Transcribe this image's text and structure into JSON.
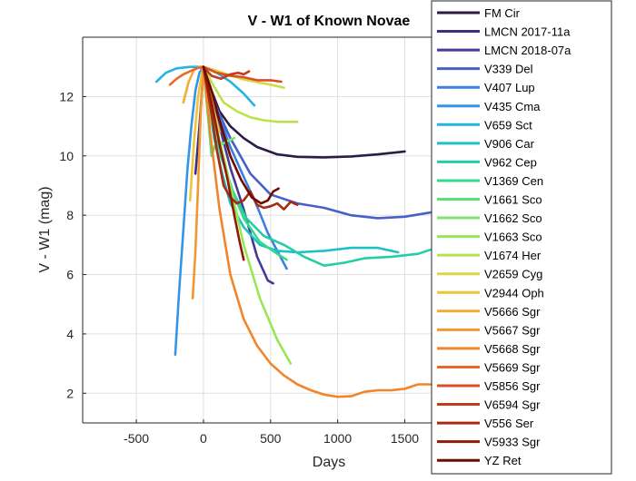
{
  "chart_data": {
    "type": "line",
    "title": "V - W1 of Known Novae",
    "xlabel": "Days",
    "ylabel": "V - W1 (mag)",
    "xlim": [
      -900,
      1700
    ],
    "ylim": [
      1,
      14
    ],
    "xticks": [
      -500,
      0,
      500,
      1000,
      1500
    ],
    "xtick_labels": [
      "-500",
      "0",
      "500",
      "1000",
      "1500"
    ],
    "yticks": [
      2,
      4,
      6,
      8,
      10,
      12
    ],
    "ytick_labels": [
      "2",
      "4",
      "6",
      "8",
      "10",
      "12"
    ],
    "grid": true,
    "legend_position": "right",
    "series": [
      {
        "name": "FM Cir",
        "color": "#2b1b45",
        "x": [
          0,
          60,
          120,
          200,
          300,
          400,
          550,
          700,
          900,
          1100,
          1300,
          1500
        ],
        "y": [
          13.0,
          12.2,
          11.5,
          11.0,
          10.6,
          10.3,
          10.05,
          9.97,
          9.95,
          9.98,
          10.05,
          10.15
        ]
      },
      {
        "name": "LMCN 2017-11a",
        "color": "#3b2f82",
        "x": [
          -60,
          -30,
          0,
          30,
          60
        ],
        "y": [
          9.4,
          11.0,
          12.9,
          12.0,
          11.2
        ]
      },
      {
        "name": "LMCN 2018-07a",
        "color": "#443a99",
        "x": [
          0,
          50,
          120,
          200,
          300,
          400,
          480,
          520
        ],
        "y": [
          13.0,
          12.2,
          11.0,
          9.6,
          8.2,
          6.6,
          5.8,
          5.7
        ]
      },
      {
        "name": "V339 Del",
        "color": "#4561c9",
        "x": [
          0,
          80,
          200,
          350,
          500,
          700,
          900,
          1100,
          1300,
          1500,
          1700
        ],
        "y": [
          13.0,
          11.8,
          10.6,
          9.4,
          8.7,
          8.4,
          8.25,
          8.0,
          7.9,
          7.95,
          8.1
        ]
      },
      {
        "name": "V407 Lup",
        "color": "#3b7fe0",
        "x": [
          0,
          50,
          120,
          200,
          300,
          400,
          480,
          550,
          620
        ],
        "y": [
          13.0,
          12.3,
          11.3,
          10.3,
          9.3,
          8.3,
          7.4,
          6.8,
          6.2
        ]
      },
      {
        "name": "V435 Cma",
        "color": "#3395ea",
        "x": [
          -210,
          -180,
          -150,
          -120,
          -90,
          -60,
          -30,
          0
        ],
        "y": [
          3.3,
          5.5,
          7.5,
          9.5,
          11.0,
          12.2,
          12.8,
          13.0
        ]
      },
      {
        "name": "V659 Sct",
        "color": "#22b5e0",
        "x": [
          -350,
          -280,
          -200,
          -100,
          0,
          100,
          200,
          300,
          380
        ],
        "y": [
          12.5,
          12.8,
          12.95,
          13.0,
          13.0,
          12.8,
          12.5,
          12.1,
          11.7
        ]
      },
      {
        "name": "V906 Car",
        "color": "#1ec0c8",
        "x": [
          0,
          40,
          80,
          140,
          200,
          300,
          420,
          550,
          700,
          900,
          1100,
          1300,
          1450
        ],
        "y": [
          13.0,
          11.8,
          10.6,
          9.4,
          8.4,
          7.6,
          7.0,
          6.8,
          6.75,
          6.8,
          6.9,
          6.9,
          6.75
        ]
      },
      {
        "name": "V962 Cep",
        "color": "#25cda5",
        "x": [
          0,
          60,
          130,
          220,
          320,
          450,
          600,
          750,
          900,
          1050,
          1200,
          1400,
          1600,
          1700
        ],
        "y": [
          13.0,
          11.5,
          10.0,
          8.8,
          7.9,
          7.3,
          7.0,
          6.6,
          6.3,
          6.4,
          6.55,
          6.6,
          6.7,
          6.85
        ]
      },
      {
        "name": "V1369 Cen",
        "color": "#36d98c",
        "x": [
          0,
          50,
          120,
          200,
          300,
          420,
          550,
          620
        ],
        "y": [
          13.0,
          11.8,
          10.4,
          9.0,
          7.9,
          7.1,
          6.7,
          6.5
        ]
      },
      {
        "name": "V1661 Sco",
        "color": "#55e27a",
        "x": [
          0,
          30,
          60,
          90
        ],
        "y": [
          13.0,
          11.5,
          10.0,
          10.4
        ]
      },
      {
        "name": "V1662 Sco",
        "color": "#79e665",
        "x": [
          0,
          60,
          100,
          140,
          180,
          230
        ],
        "y": [
          13.0,
          11.2,
          10.6,
          10.4,
          10.5,
          10.6
        ]
      },
      {
        "name": "V1663 Sco",
        "color": "#99e654",
        "x": [
          0,
          80,
          180,
          300,
          420,
          550,
          650
        ],
        "y": [
          13.0,
          11.3,
          9.4,
          7.0,
          5.2,
          3.8,
          3.0
        ]
      },
      {
        "name": "V1674 Her",
        "color": "#bce24b",
        "x": [
          0,
          70,
          150,
          250,
          350,
          450,
          550,
          700
        ],
        "y": [
          13.0,
          12.4,
          11.8,
          11.5,
          11.3,
          11.2,
          11.15,
          11.15
        ]
      },
      {
        "name": "V2659 Cyg",
        "color": "#d7d844",
        "x": [
          0,
          80,
          180,
          280,
          380,
          500,
          600
        ],
        "y": [
          13.0,
          12.9,
          12.75,
          12.6,
          12.5,
          12.4,
          12.3
        ]
      },
      {
        "name": "V2944 Oph",
        "color": "#ebc53a",
        "x": [
          -100,
          -70,
          -40,
          -10,
          0,
          40,
          80,
          120
        ],
        "y": [
          8.5,
          10.5,
          12.0,
          12.8,
          13.0,
          12.3,
          11.5,
          10.8
        ]
      },
      {
        "name": "V5666 Sgr",
        "color": "#f2ad35",
        "x": [
          -150,
          -110,
          -70,
          -30,
          0
        ],
        "y": [
          11.8,
          12.5,
          12.9,
          13.0,
          13.0
        ]
      },
      {
        "name": "V5667 Sgr",
        "color": "#f39731",
        "x": [
          -80,
          -60,
          -40,
          -20,
          0
        ],
        "y": [
          5.2,
          6.8,
          9.0,
          11.5,
          13.0
        ]
      },
      {
        "name": "V5668 Sgr",
        "color": "#f0852b",
        "x": [
          0,
          50,
          120,
          200,
          300,
          400,
          500,
          600,
          700,
          800,
          900,
          1000,
          1100,
          1200,
          1300,
          1400,
          1500,
          1600,
          1700
        ],
        "y": [
          13.0,
          10.8,
          8.2,
          6.0,
          4.5,
          3.6,
          3.0,
          2.6,
          2.3,
          2.1,
          1.95,
          1.88,
          1.9,
          2.05,
          2.1,
          2.1,
          2.15,
          2.3,
          2.3
        ]
      },
      {
        "name": "V5669 Sgr",
        "color": "#e8682a",
        "x": [
          -250,
          -200,
          -150,
          -100,
          -50,
          0
        ],
        "y": [
          12.4,
          12.6,
          12.75,
          12.85,
          12.95,
          13.0
        ]
      },
      {
        "name": "V5856 Sgr",
        "color": "#da4f25",
        "x": [
          0,
          100,
          200,
          300,
          400,
          500,
          580
        ],
        "y": [
          13.0,
          12.8,
          12.7,
          12.65,
          12.55,
          12.55,
          12.5
        ]
      },
      {
        "name": "V6594 Sgr",
        "color": "#c23c1c",
        "x": [
          0,
          60,
          130,
          200,
          260,
          300,
          340
        ],
        "y": [
          13.0,
          12.7,
          12.6,
          12.75,
          12.8,
          12.75,
          12.85
        ]
      },
      {
        "name": "V556 Ser",
        "color": "#a82a0f",
        "x": [
          0,
          50,
          100,
          150,
          200,
          250,
          300,
          350,
          400,
          450,
          500,
          550,
          600,
          650,
          700
        ],
        "y": [
          13.0,
          11.7,
          10.2,
          9.0,
          8.6,
          8.4,
          8.5,
          8.8,
          8.35,
          8.25,
          8.3,
          8.4,
          8.2,
          8.45,
          8.35
        ]
      },
      {
        "name": "V5933 Sgr",
        "color": "#8f1a05",
        "x": [
          0,
          60,
          120,
          180,
          230,
          270,
          300
        ],
        "y": [
          13.0,
          11.8,
          10.4,
          9.2,
          8.0,
          7.1,
          6.5
        ]
      },
      {
        "name": "YZ Ret",
        "color": "#6e0b03",
        "x": [
          0,
          60,
          120,
          200,
          280,
          360,
          430,
          480,
          520,
          560
        ],
        "y": [
          13.0,
          12.2,
          11.2,
          10.0,
          9.2,
          8.6,
          8.4,
          8.5,
          8.8,
          8.9
        ]
      }
    ]
  }
}
